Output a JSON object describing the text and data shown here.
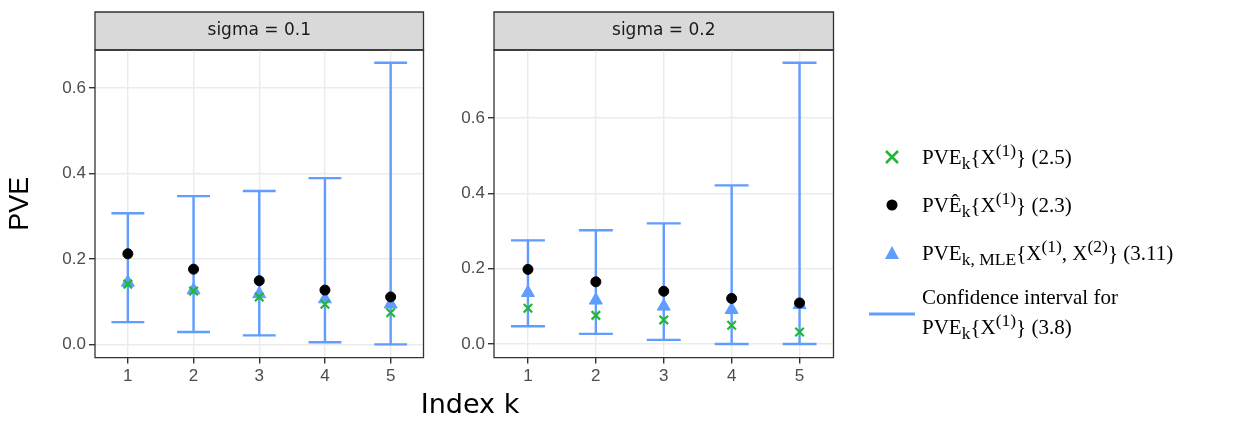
{
  "chart_data": [
    {
      "type": "scatter",
      "title": "sigma = 0.1",
      "ylabel": "PVE",
      "xlabel": "Index k",
      "categories": [
        "1",
        "2",
        "3",
        "4",
        "5"
      ],
      "ylim": [
        -0.031,
        0.689
      ],
      "yticks": [
        {
          "value": 0,
          "label": "0.0"
        },
        {
          "value": 0.2,
          "label": "0.2"
        },
        {
          "value": 0.4,
          "label": "0.4"
        },
        {
          "value": 0.6,
          "label": "0.6"
        }
      ],
      "grid": true,
      "series": [
        {
          "type": "scatter",
          "marker": "cross",
          "color": "#1fb835",
          "values": [
            0.141,
            0.125,
            0.111,
            0.094,
            0.074
          ]
        },
        {
          "type": "scatter",
          "marker": "circle",
          "color": "#000000",
          "values": [
            0.212,
            0.176,
            0.149,
            0.127,
            0.111
          ]
        },
        {
          "type": "scatter",
          "marker": "triangle",
          "color": "#619cff",
          "values": [
            0.145,
            0.127,
            0.118,
            0.106,
            0.094
          ],
          "errors": [
            [
              0.052,
              0.307
            ],
            [
              0.029,
              0.347
            ],
            [
              0.021,
              0.359
            ],
            [
              0.005,
              0.389
            ],
            [
              0.0,
              0.659
            ]
          ]
        }
      ]
    },
    {
      "type": "scatter",
      "title": "sigma = 0.2",
      "categories": [
        "1",
        "2",
        "3",
        "4",
        "5"
      ],
      "ylim": [
        -0.036,
        0.78
      ],
      "yticks": [
        {
          "value": 0,
          "label": "0.0"
        },
        {
          "value": 0.2,
          "label": "0.2"
        },
        {
          "value": 0.4,
          "label": "0.4"
        },
        {
          "value": 0.6,
          "label": "0.6"
        }
      ],
      "grid": true,
      "legend": "right",
      "series": [
        {
          "name": "PVE$_{k}${X$^{(1)}$} (2.5)",
          "type": "scatter",
          "marker": "cross",
          "color": "#1fb835",
          "values": [
            0.095,
            0.076,
            0.064,
            0.05,
            0.032
          ]
        },
        {
          "name": "PVÊ$_{k}${X$^{(1)}$} (2.3)",
          "type": "scatter",
          "marker": "circle",
          "color": "#000000",
          "values": [
            0.198,
            0.165,
            0.14,
            0.121,
            0.109
          ]
        },
        {
          "name": "PVE$_{k, MLE}${X$^{(1)}$, X$^{(2)}$} (3.11)",
          "type": "scatter",
          "marker": "triangle",
          "color": "#619cff",
          "values": [
            0.136,
            0.116,
            0.1,
            0.091,
            0.104
          ],
          "errors": [
            [
              0.047,
              0.275
            ],
            [
              0.027,
              0.302
            ],
            [
              0.011,
              0.32
            ],
            [
              0.0,
              0.421
            ],
            [
              0.0,
              0.746
            ]
          ]
        }
      ],
      "annotations": [
        "Confidence interval for PVE$_{k}${X$^{(1)}$} (3.8)"
      ]
    }
  ]
}
